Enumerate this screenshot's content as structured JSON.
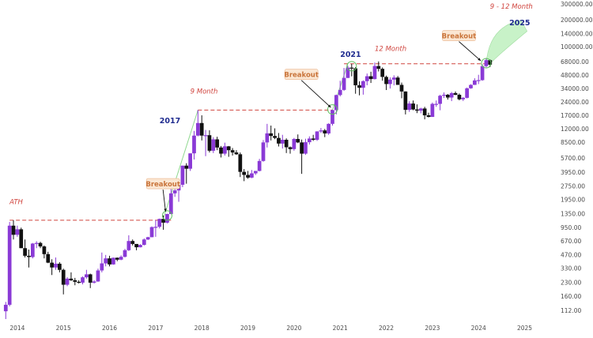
{
  "chart_data": {
    "type": "candlestick",
    "title": "",
    "xlabel": "",
    "ylabel": "",
    "scale": "log",
    "ylim": [
      90,
      310000
    ],
    "x_range": [
      "2013-09",
      "2025-08"
    ],
    "grid": false,
    "colors": {
      "up": "#8a3ad6",
      "down": "#111111",
      "annot_red": "#d0453f",
      "annot_year": "#1f2b8f",
      "annot_breakout": "#c9743a",
      "breakout_box": "#fbe7d3",
      "projection": "#c8f2c8"
    },
    "y_ticks": [
      "300000.00",
      "200000.00",
      "140000.00",
      "100000.00",
      "68000.00",
      "48000.00",
      "34000.00",
      "24000.00",
      "17000.00",
      "12000.00",
      "8500.00",
      "5700.00",
      "3950.00",
      "2750.00",
      "1950.00",
      "1350.00",
      "950.00",
      "670.00",
      "470.00",
      "330.00",
      "230.00",
      "160.00",
      "112.00"
    ],
    "x_ticks": [
      "2014",
      "2015",
      "2016",
      "2017",
      "2018",
      "2019",
      "2020",
      "2021",
      "2022",
      "2023",
      "2024",
      "2025"
    ],
    "candles": [
      {
        "x": "2013-10",
        "o": 110,
        "h": 140,
        "l": 90,
        "c": 130
      },
      {
        "x": "2013-11",
        "o": 130,
        "h": 1100,
        "l": 125,
        "c": 1000
      },
      {
        "x": "2013-12",
        "o": 1000,
        "h": 1150,
        "l": 700,
        "c": 790
      },
      {
        "x": "2014-01",
        "o": 790,
        "h": 1000,
        "l": 750,
        "c": 910
      },
      {
        "x": "2014-02",
        "o": 910,
        "h": 950,
        "l": 560,
        "c": 560
      },
      {
        "x": "2014-03",
        "o": 560,
        "h": 700,
        "l": 440,
        "c": 460
      },
      {
        "x": "2014-04",
        "o": 460,
        "h": 540,
        "l": 340,
        "c": 445
      },
      {
        "x": "2014-05",
        "o": 445,
        "h": 640,
        "l": 430,
        "c": 630
      },
      {
        "x": "2014-06",
        "o": 630,
        "h": 670,
        "l": 560,
        "c": 640
      },
      {
        "x": "2014-07",
        "o": 640,
        "h": 660,
        "l": 560,
        "c": 585
      },
      {
        "x": "2014-08",
        "o": 585,
        "h": 600,
        "l": 430,
        "c": 480
      },
      {
        "x": "2014-09",
        "o": 480,
        "h": 510,
        "l": 380,
        "c": 385
      },
      {
        "x": "2014-10",
        "o": 385,
        "h": 420,
        "l": 280,
        "c": 340
      },
      {
        "x": "2014-11",
        "o": 340,
        "h": 440,
        "l": 320,
        "c": 375
      },
      {
        "x": "2014-12",
        "o": 375,
        "h": 390,
        "l": 300,
        "c": 320
      },
      {
        "x": "2015-01",
        "o": 320,
        "h": 330,
        "l": 170,
        "c": 218
      },
      {
        "x": "2015-02",
        "o": 218,
        "h": 265,
        "l": 210,
        "c": 255
      },
      {
        "x": "2015-03",
        "o": 255,
        "h": 300,
        "l": 240,
        "c": 245
      },
      {
        "x": "2015-04",
        "o": 245,
        "h": 260,
        "l": 215,
        "c": 235
      },
      {
        "x": "2015-05",
        "o": 235,
        "h": 245,
        "l": 225,
        "c": 230
      },
      {
        "x": "2015-06",
        "o": 230,
        "h": 270,
        "l": 220,
        "c": 264
      },
      {
        "x": "2015-07",
        "o": 264,
        "h": 320,
        "l": 255,
        "c": 285
      },
      {
        "x": "2015-08",
        "o": 285,
        "h": 290,
        "l": 200,
        "c": 230
      },
      {
        "x": "2015-09",
        "o": 230,
        "h": 245,
        "l": 225,
        "c": 237
      },
      {
        "x": "2015-10",
        "o": 237,
        "h": 330,
        "l": 235,
        "c": 315
      },
      {
        "x": "2015-11",
        "o": 315,
        "h": 500,
        "l": 300,
        "c": 378
      },
      {
        "x": "2015-12",
        "o": 378,
        "h": 470,
        "l": 350,
        "c": 430
      },
      {
        "x": "2016-01",
        "o": 430,
        "h": 460,
        "l": 350,
        "c": 368
      },
      {
        "x": "2016-02",
        "o": 368,
        "h": 440,
        "l": 365,
        "c": 437
      },
      {
        "x": "2016-03",
        "o": 437,
        "h": 440,
        "l": 400,
        "c": 416
      },
      {
        "x": "2016-04",
        "o": 416,
        "h": 465,
        "l": 410,
        "c": 448
      },
      {
        "x": "2016-05",
        "o": 448,
        "h": 550,
        "l": 440,
        "c": 531
      },
      {
        "x": "2016-06",
        "o": 531,
        "h": 780,
        "l": 520,
        "c": 673
      },
      {
        "x": "2016-07",
        "o": 673,
        "h": 700,
        "l": 600,
        "c": 624
      },
      {
        "x": "2016-08",
        "o": 624,
        "h": 620,
        "l": 530,
        "c": 573
      },
      {
        "x": "2016-09",
        "o": 573,
        "h": 620,
        "l": 570,
        "c": 609
      },
      {
        "x": "2016-10",
        "o": 609,
        "h": 720,
        "l": 600,
        "c": 700
      },
      {
        "x": "2016-11",
        "o": 700,
        "h": 750,
        "l": 690,
        "c": 743
      },
      {
        "x": "2016-12",
        "o": 743,
        "h": 980,
        "l": 740,
        "c": 963
      },
      {
        "x": "2017-01",
        "o": 963,
        "h": 1150,
        "l": 750,
        "c": 970
      },
      {
        "x": "2017-02",
        "o": 970,
        "h": 1200,
        "l": 930,
        "c": 1190
      },
      {
        "x": "2017-03",
        "o": 1190,
        "h": 1300,
        "l": 900,
        "c": 1080
      },
      {
        "x": "2017-04",
        "o": 1080,
        "h": 1360,
        "l": 1060,
        "c": 1350
      },
      {
        "x": "2017-05",
        "o": 1350,
        "h": 2750,
        "l": 1340,
        "c": 2300
      },
      {
        "x": "2017-06",
        "o": 2300,
        "h": 3000,
        "l": 2100,
        "c": 2480
      },
      {
        "x": "2017-07",
        "o": 2480,
        "h": 2900,
        "l": 1850,
        "c": 2870
      },
      {
        "x": "2017-08",
        "o": 2870,
        "h": 4700,
        "l": 2700,
        "c": 4700
      },
      {
        "x": "2017-09",
        "o": 4700,
        "h": 5000,
        "l": 2950,
        "c": 4340
      },
      {
        "x": "2017-10",
        "o": 4340,
        "h": 6450,
        "l": 4100,
        "c": 6450
      },
      {
        "x": "2017-11",
        "o": 6450,
        "h": 11500,
        "l": 5500,
        "c": 10200
      },
      {
        "x": "2017-12",
        "o": 10200,
        "h": 19700,
        "l": 10000,
        "c": 14100
      },
      {
        "x": "2018-01",
        "o": 14100,
        "h": 17200,
        "l": 9000,
        "c": 10200
      },
      {
        "x": "2018-02",
        "o": 10200,
        "h": 11800,
        "l": 6000,
        "c": 10300
      },
      {
        "x": "2018-03",
        "o": 10300,
        "h": 11700,
        "l": 6600,
        "c": 6900
      },
      {
        "x": "2018-04",
        "o": 6900,
        "h": 9800,
        "l": 6500,
        "c": 9250
      },
      {
        "x": "2018-05",
        "o": 9250,
        "h": 9900,
        "l": 7000,
        "c": 7500
      },
      {
        "x": "2018-06",
        "o": 7500,
        "h": 7800,
        "l": 5800,
        "c": 6400
      },
      {
        "x": "2018-07",
        "o": 6400,
        "h": 8500,
        "l": 6100,
        "c": 7730
      },
      {
        "x": "2018-08",
        "o": 7730,
        "h": 7800,
        "l": 5900,
        "c": 7000
      },
      {
        "x": "2018-09",
        "o": 7000,
        "h": 7400,
        "l": 6100,
        "c": 6600
      },
      {
        "x": "2018-10",
        "o": 6600,
        "h": 7000,
        "l": 6200,
        "c": 6300
      },
      {
        "x": "2018-11",
        "o": 6300,
        "h": 6600,
        "l": 3500,
        "c": 4000
      },
      {
        "x": "2018-12",
        "o": 4000,
        "h": 4300,
        "l": 3150,
        "c": 3700
      },
      {
        "x": "2019-01",
        "o": 3700,
        "h": 4100,
        "l": 3350,
        "c": 3450
      },
      {
        "x": "2019-02",
        "o": 3450,
        "h": 4200,
        "l": 3400,
        "c": 3850
      },
      {
        "x": "2019-03",
        "o": 3850,
        "h": 4100,
        "l": 3700,
        "c": 4100
      },
      {
        "x": "2019-04",
        "o": 4100,
        "h": 5600,
        "l": 4050,
        "c": 5300
      },
      {
        "x": "2019-05",
        "o": 5300,
        "h": 9100,
        "l": 5200,
        "c": 8550
      },
      {
        "x": "2019-06",
        "o": 8550,
        "h": 13800,
        "l": 7500,
        "c": 10800
      },
      {
        "x": "2019-07",
        "o": 10800,
        "h": 13200,
        "l": 9000,
        "c": 10100
      },
      {
        "x": "2019-08",
        "o": 10100,
        "h": 12300,
        "l": 9300,
        "c": 9600
      },
      {
        "x": "2019-09",
        "o": 9600,
        "h": 10900,
        "l": 7700,
        "c": 8300
      },
      {
        "x": "2019-10",
        "o": 8300,
        "h": 10400,
        "l": 7300,
        "c": 9150
      },
      {
        "x": "2019-11",
        "o": 9150,
        "h": 9500,
        "l": 6500,
        "c": 7550
      },
      {
        "x": "2019-12",
        "o": 7550,
        "h": 7700,
        "l": 6400,
        "c": 7200
      },
      {
        "x": "2020-01",
        "o": 7200,
        "h": 9600,
        "l": 6900,
        "c": 9350
      },
      {
        "x": "2020-02",
        "o": 9350,
        "h": 10500,
        "l": 8400,
        "c": 8550
      },
      {
        "x": "2020-03",
        "o": 8550,
        "h": 9200,
        "l": 3800,
        "c": 6400
      },
      {
        "x": "2020-04",
        "o": 6400,
        "h": 9400,
        "l": 6200,
        "c": 8600
      },
      {
        "x": "2020-05",
        "o": 8600,
        "h": 10000,
        "l": 8100,
        "c": 9450
      },
      {
        "x": "2020-06",
        "o": 9450,
        "h": 10400,
        "l": 8900,
        "c": 9150
      },
      {
        "x": "2020-07",
        "o": 9150,
        "h": 11400,
        "l": 8900,
        "c": 11350
      },
      {
        "x": "2020-08",
        "o": 11350,
        "h": 12400,
        "l": 10900,
        "c": 11650
      },
      {
        "x": "2020-09",
        "o": 11650,
        "h": 12100,
        "l": 9800,
        "c": 10780
      },
      {
        "x": "2020-10",
        "o": 10780,
        "h": 14000,
        "l": 10400,
        "c": 13800
      },
      {
        "x": "2020-11",
        "o": 13800,
        "h": 19800,
        "l": 13200,
        "c": 19700
      },
      {
        "x": "2020-12",
        "o": 19700,
        "h": 29300,
        "l": 17600,
        "c": 29000
      },
      {
        "x": "2021-01",
        "o": 29000,
        "h": 41900,
        "l": 28000,
        "c": 33100
      },
      {
        "x": "2021-02",
        "o": 33100,
        "h": 58300,
        "l": 32300,
        "c": 45100
      },
      {
        "x": "2021-03",
        "o": 45100,
        "h": 61700,
        "l": 44900,
        "c": 58800
      },
      {
        "x": "2021-04",
        "o": 58800,
        "h": 64800,
        "l": 47000,
        "c": 57700
      },
      {
        "x": "2021-05",
        "o": 57700,
        "h": 59500,
        "l": 30000,
        "c": 37300
      },
      {
        "x": "2021-06",
        "o": 37300,
        "h": 41300,
        "l": 28800,
        "c": 35000
      },
      {
        "x": "2021-07",
        "o": 35000,
        "h": 42400,
        "l": 29300,
        "c": 41500
      },
      {
        "x": "2021-08",
        "o": 41500,
        "h": 50500,
        "l": 37300,
        "c": 47100
      },
      {
        "x": "2021-09",
        "o": 47100,
        "h": 52900,
        "l": 39600,
        "c": 43800
      },
      {
        "x": "2021-10",
        "o": 43800,
        "h": 67000,
        "l": 43300,
        "c": 61300
      },
      {
        "x": "2021-11",
        "o": 61300,
        "h": 69000,
        "l": 53300,
        "c": 57000
      },
      {
        "x": "2021-12",
        "o": 57000,
        "h": 59100,
        "l": 42000,
        "c": 46300
      },
      {
        "x": "2022-01",
        "o": 46300,
        "h": 47900,
        "l": 33000,
        "c": 38500
      },
      {
        "x": "2022-02",
        "o": 38500,
        "h": 45800,
        "l": 34300,
        "c": 43200
      },
      {
        "x": "2022-03",
        "o": 43200,
        "h": 48200,
        "l": 37200,
        "c": 45500
      },
      {
        "x": "2022-04",
        "o": 45500,
        "h": 47400,
        "l": 37700,
        "c": 37700
      },
      {
        "x": "2022-05",
        "o": 37700,
        "h": 40000,
        "l": 26700,
        "c": 31800
      },
      {
        "x": "2022-06",
        "o": 31800,
        "h": 31900,
        "l": 17600,
        "c": 19800
      },
      {
        "x": "2022-07",
        "o": 19800,
        "h": 24700,
        "l": 18800,
        "c": 23300
      },
      {
        "x": "2022-08",
        "o": 23300,
        "h": 25200,
        "l": 19600,
        "c": 20000
      },
      {
        "x": "2022-09",
        "o": 20000,
        "h": 22800,
        "l": 18200,
        "c": 19400
      },
      {
        "x": "2022-10",
        "o": 19400,
        "h": 20900,
        "l": 18100,
        "c": 20500
      },
      {
        "x": "2022-11",
        "o": 20500,
        "h": 21400,
        "l": 15500,
        "c": 17200
      },
      {
        "x": "2022-12",
        "o": 17200,
        "h": 18400,
        "l": 16300,
        "c": 16500
      },
      {
        "x": "2023-01",
        "o": 16500,
        "h": 23900,
        "l": 16500,
        "c": 23100
      },
      {
        "x": "2023-02",
        "o": 23100,
        "h": 25200,
        "l": 21400,
        "c": 23100
      },
      {
        "x": "2023-03",
        "o": 23100,
        "h": 29200,
        "l": 19600,
        "c": 28500
      },
      {
        "x": "2023-04",
        "o": 28500,
        "h": 31000,
        "l": 26900,
        "c": 29200
      },
      {
        "x": "2023-05",
        "o": 29200,
        "h": 29800,
        "l": 25800,
        "c": 27200
      },
      {
        "x": "2023-06",
        "o": 27200,
        "h": 31400,
        "l": 24800,
        "c": 30500
      },
      {
        "x": "2023-07",
        "o": 30500,
        "h": 31800,
        "l": 28900,
        "c": 29200
      },
      {
        "x": "2023-08",
        "o": 29200,
        "h": 30200,
        "l": 25300,
        "c": 26000
      },
      {
        "x": "2023-09",
        "o": 26000,
        "h": 27500,
        "l": 24900,
        "c": 27000
      },
      {
        "x": "2023-10",
        "o": 27000,
        "h": 35200,
        "l": 26600,
        "c": 34500
      },
      {
        "x": "2023-11",
        "o": 34500,
        "h": 38400,
        "l": 34100,
        "c": 37700
      },
      {
        "x": "2023-12",
        "o": 37700,
        "h": 44700,
        "l": 37600,
        "c": 42300
      },
      {
        "x": "2024-01",
        "o": 42300,
        "h": 48900,
        "l": 38500,
        "c": 42600
      },
      {
        "x": "2024-02",
        "o": 42600,
        "h": 64000,
        "l": 41900,
        "c": 61200
      },
      {
        "x": "2024-03",
        "o": 61200,
        "h": 73800,
        "l": 59300,
        "c": 71300
      },
      {
        "x": "2024-04",
        "o": 71300,
        "h": 72800,
        "l": 59600,
        "c": 63500
      }
    ],
    "levels": [
      {
        "from": "2013-11",
        "to": "2017-05",
        "y": 1150
      },
      {
        "from": "2017-12",
        "to": "2020-11",
        "y": 19700
      },
      {
        "from": "2021-02",
        "to": "2024-03",
        "y": 65000
      }
    ],
    "projections": [
      {
        "from": [
          "2017-03",
          1200
        ],
        "to": [
          "2017-12",
          19700
        ]
      },
      {
        "from": [
          "2020-11",
          19700
        ],
        "to": [
          "2021-03",
          65000
        ]
      },
      {
        "from": [
          "2024-03",
          66000
        ],
        "to": [
          "2024-12",
          200000
        ]
      }
    ],
    "circles": [
      {
        "x": "2017-04",
        "y": 1300
      },
      {
        "x": "2020-11",
        "y": 20000
      },
      {
        "x": "2021-04",
        "y": 61000
      },
      {
        "x": "2024-03",
        "y": 66000
      }
    ],
    "annotations": [
      {
        "id": "ath",
        "text": "ATH",
        "x": "2013-11",
        "y": 1750,
        "style": "red"
      },
      {
        "id": "breakout-2017",
        "text": "Breakout",
        "x": "2016-11",
        "y": 2750,
        "style": "breakout",
        "arrow_to": [
          "2017-04",
          1350
        ]
      },
      {
        "id": "year-2017",
        "text": "2017",
        "x": "2017-02",
        "y": 14000,
        "style": "year"
      },
      {
        "id": "nine-month",
        "text": "9 Month",
        "x": "2017-10",
        "y": 30000,
        "style": "red"
      },
      {
        "id": "breakout-2020",
        "text": "Breakout",
        "x": "2019-11",
        "y": 46000,
        "style": "breakout",
        "arrow_to": [
          "2020-11",
          19800
        ]
      },
      {
        "id": "year-2021",
        "text": "2021",
        "x": "2021-01",
        "y": 78000,
        "style": "year"
      },
      {
        "id": "twelve-month",
        "text": "12 Month",
        "x": "2021-10",
        "y": 90000,
        "style": "red"
      },
      {
        "id": "breakout-2024",
        "text": "Breakout",
        "x": "2023-04",
        "y": 125000,
        "style": "breakout",
        "arrow_to": [
          "2024-02",
          66000
        ]
      },
      {
        "id": "nine-twelve-month",
        "text": "9 - 12 Month",
        "x": "2024-04",
        "y": 270000,
        "style": "red"
      },
      {
        "id": "year-2025",
        "text": "2025",
        "x": "2024-09",
        "y": 175000,
        "style": "year"
      }
    ]
  }
}
